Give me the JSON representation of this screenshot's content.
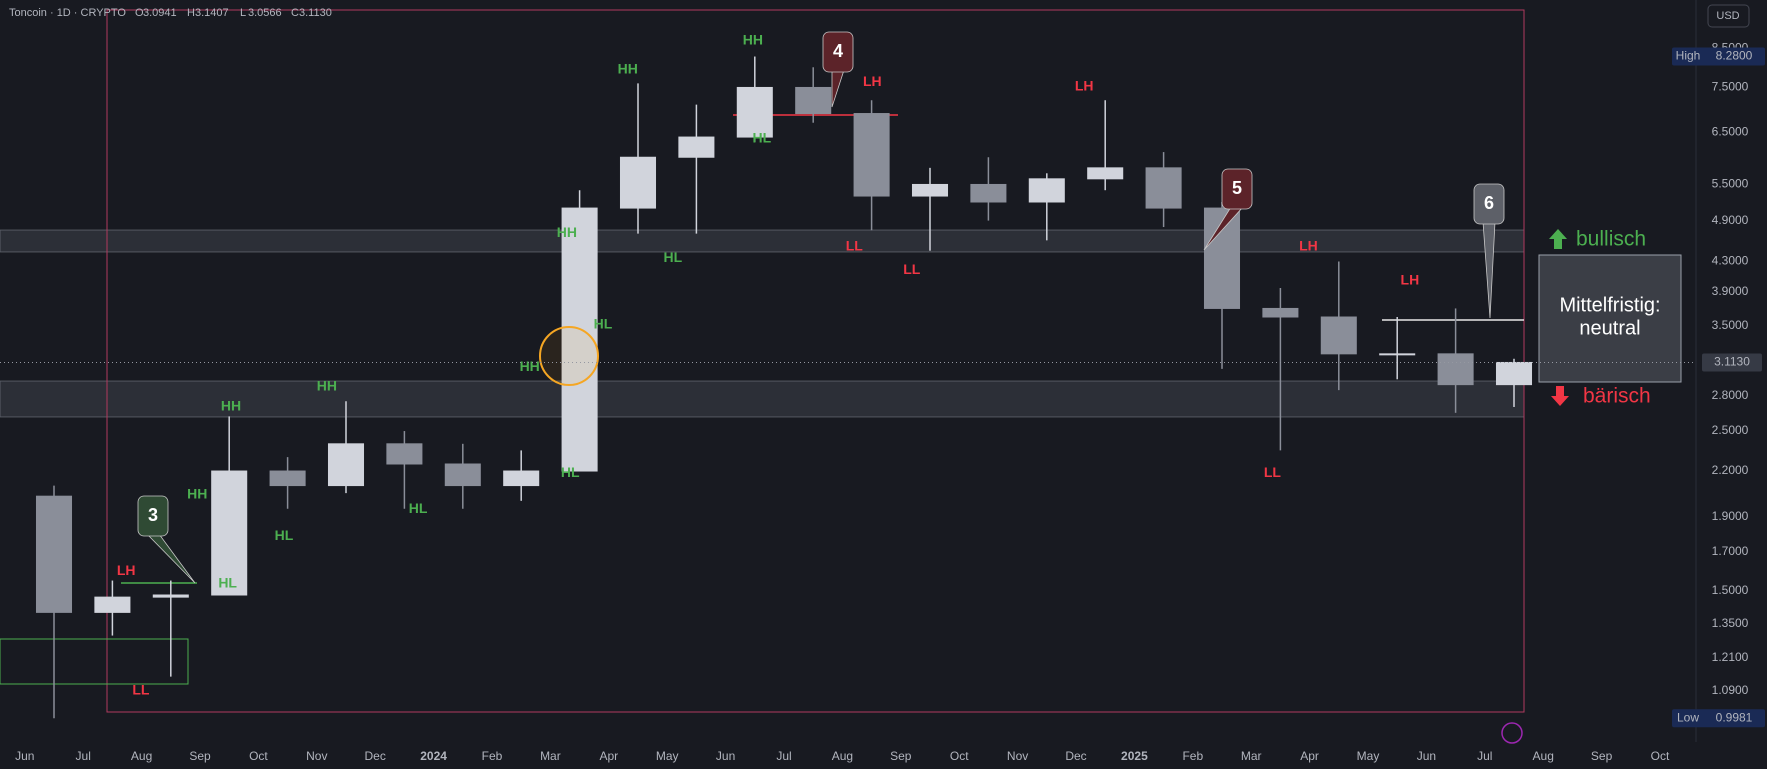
{
  "chart_data": {
    "type": "candlestick",
    "symbol": "Toncoin · 1D · CRYPTO",
    "ohlc_header": [
      {
        "name": "O",
        "value": 3.0941
      },
      {
        "name": "H",
        "value": 3.1407
      },
      {
        "name": "L",
        "value": 3.0566
      },
      {
        "name": "C",
        "value": {
          "value": 3.113,
          "label": "3.1130"
        }
      }
    ],
    "currency": "USD",
    "categories": [
      "Jun",
      "Jul",
      "Aug",
      "Sep",
      "Oct",
      "Nov",
      "Dec",
      "2024",
      "Feb",
      "Mar",
      "Apr",
      "May",
      "Jun",
      "Jul",
      "Aug",
      "Sep",
      "Oct",
      "Nov",
      "Dec",
      "2025",
      "Feb",
      "Mar",
      "Apr",
      "May",
      "Jun",
      "Jul",
      "Aug",
      "Sep",
      "Oct"
    ],
    "open": [
      2.03,
      1.4,
      1.47,
      1.48,
      2.2,
      2.1,
      2.4,
      2.25,
      2.1,
      2.2,
      5.1,
      6.0,
      6.4,
      7.5,
      6.9,
      5.3,
      5.5,
      5.2,
      5.6,
      5.8,
      5.1,
      3.7,
      3.6,
      3.2,
      3.2,
      2.9,
      null,
      null,
      null
    ],
    "high": [
      2.1,
      1.55,
      1.55,
      2.62,
      2.3,
      2.75,
      2.5,
      2.4,
      2.35,
      5.4,
      7.6,
      7.1,
      8.28,
      8.0,
      7.2,
      5.8,
      6.0,
      5.7,
      7.2,
      6.1,
      5.2,
      3.95,
      4.3,
      3.6,
      3.7,
      3.15,
      null,
      null,
      null
    ],
    "low": [
      0.9981,
      1.3,
      1.14,
      1.5,
      1.95,
      2.05,
      1.95,
      1.95,
      2.0,
      2.25,
      4.7,
      4.7,
      6.3,
      6.7,
      4.75,
      4.45,
      4.9,
      4.6,
      5.4,
      4.8,
      3.05,
      2.35,
      2.85,
      2.95,
      2.65,
      2.7,
      null,
      null,
      null
    ],
    "close": [
      1.4,
      1.47,
      1.48,
      2.2,
      2.1,
      2.4,
      2.25,
      2.1,
      2.2,
      5.1,
      6.0,
      6.4,
      7.5,
      6.9,
      5.3,
      5.5,
      5.2,
      5.6,
      5.8,
      5.1,
      3.7,
      3.6,
      3.2,
      3.2,
      2.9,
      3.113,
      null,
      null,
      null
    ],
    "up_color": "#d1d4dc",
    "down_color": "#8a8e99",
    "log_scale": true,
    "grid": false,
    "ylim": [
      0.925,
      9.92
    ],
    "yticks": [
      {
        "value": 1.09,
        "label": "1.0900"
      },
      {
        "value": 1.21,
        "label": "1.2100"
      },
      {
        "value": 1.35,
        "label": "1.3500"
      },
      {
        "value": 1.5,
        "label": "1.5000"
      },
      {
        "value": 1.7,
        "label": "1.7000"
      },
      {
        "value": 1.9,
        "label": "1.9000"
      },
      {
        "value": 2.2,
        "label": "2.2000"
      },
      {
        "value": 2.5,
        "label": "2.5000"
      },
      {
        "value": 2.8,
        "label": "2.8000"
      },
      {
        "value": 3.5,
        "label": "3.5000"
      },
      {
        "value": 3.9,
        "label": "3.9000"
      },
      {
        "value": 4.3,
        "label": "4.3000"
      },
      {
        "value": 4.9,
        "label": "4.9000"
      },
      {
        "value": 5.5,
        "label": "5.5000"
      },
      {
        "value": 6.5,
        "label": "6.5000"
      },
      {
        "value": 7.5,
        "label": "7.5000"
      },
      {
        "value": 8.5,
        "label": "8.5000"
      }
    ],
    "high_marker": {
      "name": "High",
      "value": 8.28,
      "label": "8.2800"
    },
    "low_marker": {
      "name": "Low",
      "value": 0.9981
    },
    "last_price": {
      "value": 3.113,
      "label": "3.1130"
    },
    "annotations": [
      {
        "text": "LH",
        "color": "#f23645"
      },
      {
        "text": "LL",
        "color": "#f23645"
      },
      {
        "text": "HH",
        "color": "#4caf50"
      },
      {
        "text": "HL",
        "color": "#4caf50"
      },
      {
        "text": "HH",
        "color": "#4caf50"
      },
      {
        "text": "HL",
        "color": "#4caf50"
      },
      {
        "text": "HH",
        "color": "#4caf50"
      },
      {
        "text": "HL",
        "color": "#4caf50"
      },
      {
        "text": "HH",
        "color": "#4caf50"
      },
      {
        "text": "HL",
        "color": "#4caf50"
      },
      {
        "text": "HL",
        "color": "#4caf50"
      },
      {
        "text": "HH",
        "color": "#4caf50"
      },
      {
        "text": "HL",
        "color": "#4caf50"
      },
      {
        "text": "HH",
        "color": "#4caf50"
      },
      {
        "text": "HH",
        "color": "#4caf50"
      },
      {
        "text": "HL",
        "color": "#4caf50"
      },
      {
        "text": "LH",
        "color": "#f23645"
      },
      {
        "text": "LL",
        "color": "#f23645"
      },
      {
        "text": "LL",
        "color": "#f23645"
      },
      {
        "text": "LH",
        "color": "#f23645"
      },
      {
        "text": "LH",
        "color": "#f23645"
      },
      {
        "text": "LH",
        "color": "#f23645"
      },
      {
        "text": "LL",
        "color": "#f23645"
      }
    ],
    "callouts": [
      {
        "text": "3",
        "color": "#2f4a34"
      },
      {
        "text": "4",
        "color": "#5c2329"
      },
      {
        "text": "5",
        "color": "#5c2329"
      },
      {
        "text": "6",
        "color": "#5d6068"
      }
    ],
    "outlook": {
      "title": "Mittelfristig:",
      "value": "neutral"
    },
    "bullish_label": "bullisch",
    "bearish_label": "bärisch"
  }
}
